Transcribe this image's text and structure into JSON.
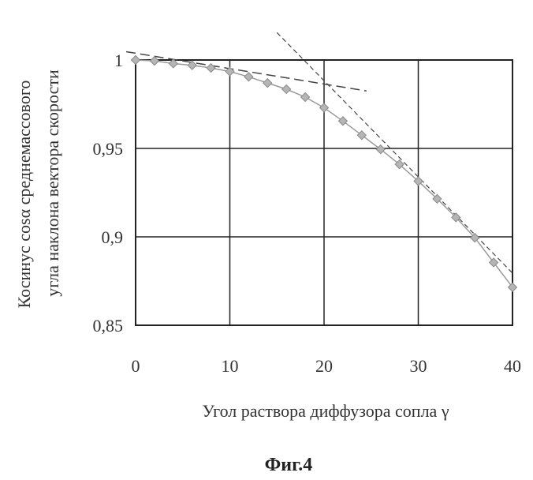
{
  "chart_data": {
    "type": "line",
    "title": "",
    "xlabel": "Угол раствора диффузора сопла γ",
    "ylabel_line1": "Косинус cosα среднемассового",
    "ylabel_line2": "угла наклона вектора скорости",
    "caption": "Фиг.4",
    "xlim": [
      0,
      40
    ],
    "ylim": [
      0.85,
      1.0
    ],
    "x_ticks": [
      0,
      10,
      20,
      30,
      40
    ],
    "x_tick_labels": [
      "0",
      "10",
      "20",
      "30",
      "40"
    ],
    "y_ticks": [
      0.85,
      0.9,
      0.95,
      1.0
    ],
    "y_tick_labels": [
      "0,85",
      "0,9",
      "0,95",
      "1"
    ],
    "grid": true,
    "series": [
      {
        "marker": "diamond",
        "x": [
          0,
          2,
          4,
          6,
          8,
          10,
          12,
          14,
          16,
          18,
          20,
          22,
          24,
          26,
          28,
          30,
          32,
          34,
          36,
          38,
          40
        ],
        "y": [
          1.0,
          0.9995,
          0.998,
          0.997,
          0.9955,
          0.9935,
          0.9905,
          0.987,
          0.9835,
          0.979,
          0.973,
          0.9655,
          0.9575,
          0.9495,
          0.941,
          0.9315,
          0.9215,
          0.911,
          0.8995,
          0.8855,
          0.8715
        ]
      }
    ],
    "tangent_lines": [
      {
        "style": "long-dash",
        "x": [
          -1,
          24.5
        ],
        "y": [
          1.0047,
          0.9825
        ]
      },
      {
        "style": "short-dash",
        "x": [
          15,
          40
        ],
        "y": [
          1.0155,
          0.8795
        ]
      }
    ]
  }
}
